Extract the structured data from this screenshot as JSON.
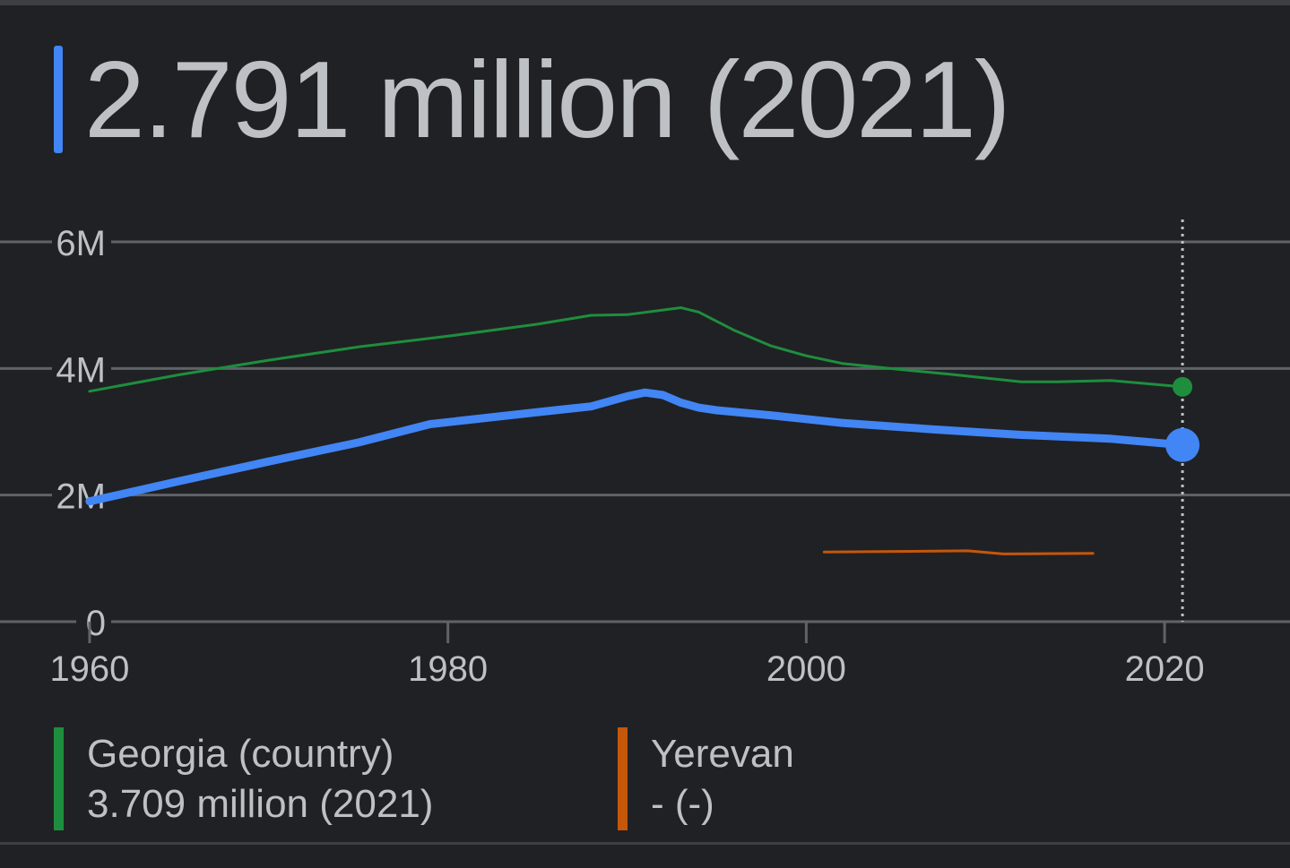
{
  "headline": {
    "value_text": "2.791 million (2021)",
    "color": "#4285f4"
  },
  "chart_data": {
    "type": "line",
    "title": "",
    "xlabel": "",
    "ylabel": "",
    "xlim": [
      1955,
      2027
    ],
    "ylim": [
      0,
      6000000
    ],
    "x_ticks": [
      1960,
      1980,
      2000,
      2020
    ],
    "x_tick_labels": [
      "1960",
      "1980",
      "2000",
      "2020"
    ],
    "y_ticks": [
      0,
      2000000,
      4000000,
      6000000
    ],
    "y_tick_labels": [
      "0",
      "2M",
      "4M",
      "6M"
    ],
    "grid": true,
    "highlight_x": 2021,
    "series": [
      {
        "color": "#1e8e3e",
        "x": [
          1960,
          1965,
          1970,
          1975,
          1980,
          1985,
          1988,
          1990,
          1993,
          1994,
          1996,
          1998,
          2000,
          2002,
          2005,
          2008,
          2012,
          2014,
          2017,
          2021
        ],
        "values": [
          3640000,
          3900000,
          4130000,
          4340000,
          4510000,
          4700000,
          4840000,
          4850000,
          4960000,
          4890000,
          4600000,
          4360000,
          4200000,
          4080000,
          3990000,
          3910000,
          3790000,
          3790000,
          3810000,
          3709000
        ]
      },
      {
        "color": "#4285f4",
        "x": [
          1960,
          1965,
          1970,
          1975,
          1979,
          1985,
          1988,
          1990,
          1991,
          1992,
          1993,
          1994,
          1995,
          1998,
          2002,
          2007,
          2012,
          2017,
          2021
        ],
        "values": [
          1900000,
          2220000,
          2530000,
          2830000,
          3120000,
          3310000,
          3400000,
          3560000,
          3620000,
          3580000,
          3460000,
          3380000,
          3340000,
          3260000,
          3140000,
          3040000,
          2950000,
          2890000,
          2791000
        ]
      },
      {
        "color": "#c5570a",
        "x": [
          2001,
          2005,
          2009,
          2011,
          2016
        ],
        "values": [
          1100000,
          1110000,
          1120000,
          1070000,
          1080000
        ]
      }
    ]
  },
  "legend": [
    {
      "name": "Georgia (country)",
      "value_text": "3.709 million (2021)",
      "color": "#1e8e3e"
    },
    {
      "name": "Yerevan",
      "value_text": "- (-)",
      "color": "#c5570a"
    }
  ]
}
